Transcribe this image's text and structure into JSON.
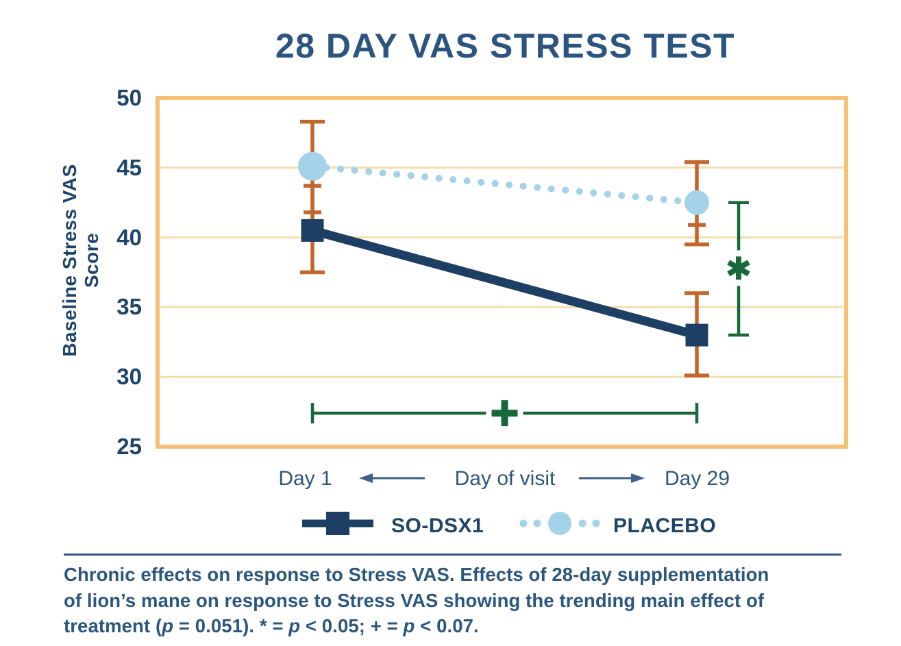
{
  "chart_data": {
    "type": "line",
    "title": "28 DAY VAS STRESS TEST",
    "ylabel": "Baseline Stress VAS Score",
    "xlabel": "Day of visit",
    "x_categories": [
      "Day 1",
      "Day 29"
    ],
    "ylim": [
      25,
      50
    ],
    "yticks": [
      25,
      30,
      35,
      40,
      45,
      50
    ],
    "gridlines": [
      30,
      35,
      40,
      45
    ],
    "legend_position": "bottom",
    "frame_color": "#f6c075",
    "grid_color": "#f7dcae",
    "error_bar_color": "#c2662c",
    "significance_color": "#17693a",
    "series": [
      {
        "name": "SO-DSX1",
        "marker": "square",
        "line_style": "solid",
        "color": "#1c3f63",
        "values": [
          40.5,
          33.0
        ],
        "error_hi": [
          43.7,
          36.0
        ],
        "error_lo": [
          37.5,
          30.1
        ],
        "cap_hi_style": [
          "narrow",
          "wide"
        ],
        "cap_lo_style": [
          "wide",
          "wide"
        ]
      },
      {
        "name": "PLACEBO",
        "marker": "circle",
        "line_style": "dotted",
        "color": "#a3d2e9",
        "values": [
          45.1,
          42.5
        ],
        "error_hi": [
          48.3,
          45.4
        ],
        "error_lo": [
          41.8,
          39.5
        ],
        "cap_hi_style": [
          "wide",
          "wide"
        ],
        "cap_lo_style": [
          "narrow",
          "wide"
        ]
      }
    ],
    "extra_inner_caps": [
      {
        "series": "PLACEBO",
        "x_index": 1,
        "value": 40.9
      }
    ],
    "significance": [
      {
        "symbol": "*",
        "type": "vertical_bracket",
        "anchor": "Day 29",
        "value_span": [
          33.0,
          42.5
        ],
        "symbol_value": 37.8
      },
      {
        "symbol": "+",
        "type": "horizontal_bracket",
        "category_span": [
          "Day 1",
          "Day 29"
        ],
        "value": 27.4
      }
    ]
  },
  "caption": {
    "lines": [
      [
        {
          "t": "Chronic effects on response to Stress VAS. Effects of 28-day supplementation"
        }
      ],
      [
        {
          "t": "of lion’s mane on response to Stress VAS showing the trending main effect of"
        }
      ],
      [
        {
          "t": "treatment ("
        },
        {
          "t": "p",
          "i": true
        },
        {
          "t": " = 0.051). * = "
        },
        {
          "t": "p",
          "i": true
        },
        {
          "t": " < 0.05; + = "
        },
        {
          "t": "p",
          "i": true
        },
        {
          "t": " < 0.07."
        }
      ]
    ]
  }
}
